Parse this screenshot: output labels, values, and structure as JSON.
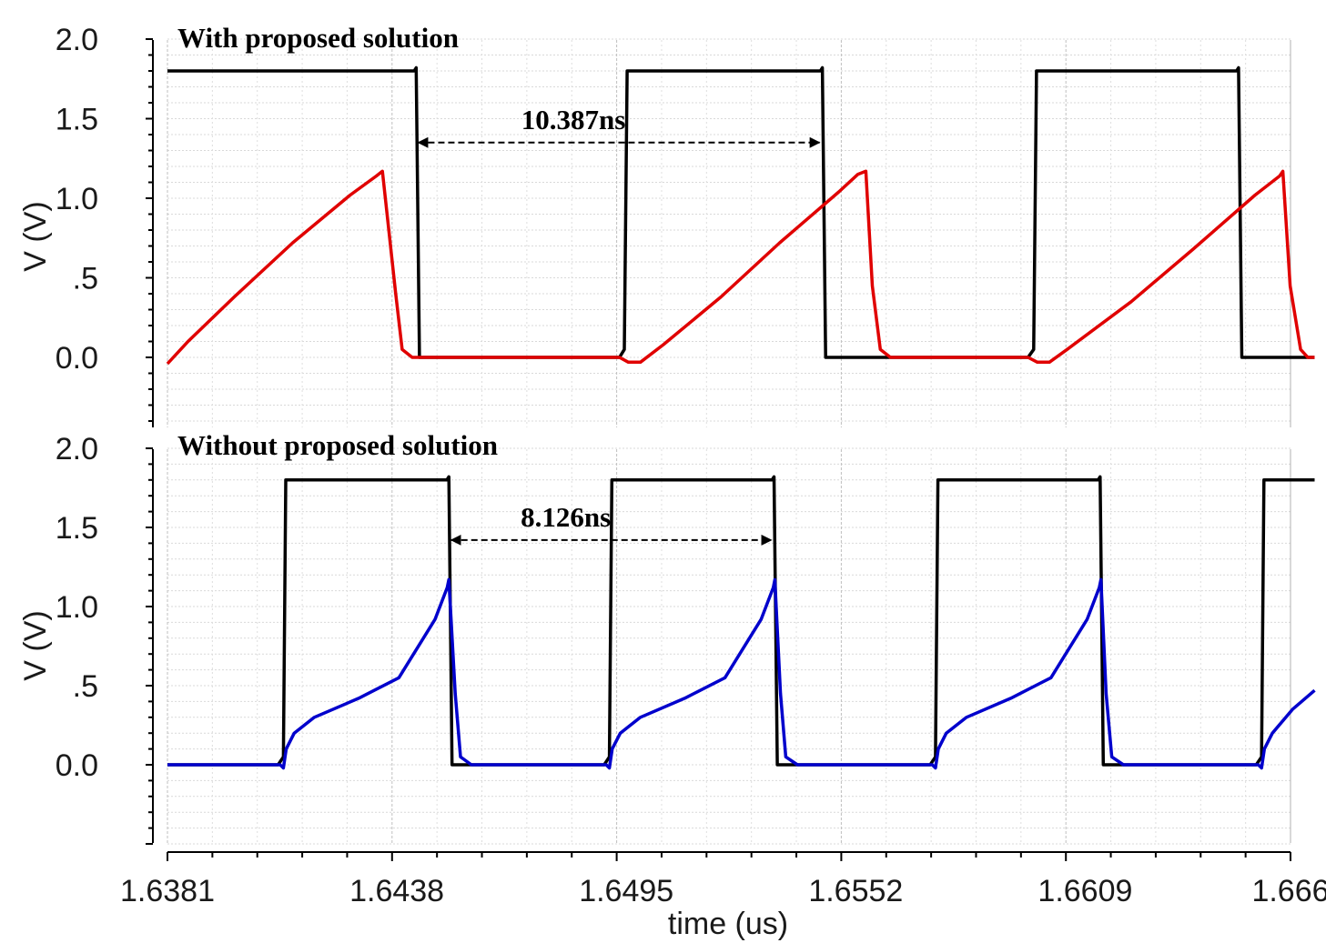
{
  "chart_data": [
    {
      "type": "line",
      "title": "With proposed solution",
      "ylabel": "V (V)",
      "xlabel": "",
      "xlim": [
        1.6381,
        1.666
      ],
      "ylim": [
        -0.4,
        2.0
      ],
      "y_ticks": [
        0.0,
        0.5,
        1.0,
        1.5,
        2.0
      ],
      "y_tick_labels": [
        "0.0",
        ".5",
        "1.0",
        "1.5",
        "2.0"
      ],
      "grid": true,
      "legend": "none",
      "annotation": {
        "text": "10.387ns",
        "x_start": 1.64426,
        "x_end": 1.65437,
        "y": 1.35
      },
      "series": [
        {
          "color": "#000000",
          "points": [
            [
              1.6381,
              1.8
            ],
            [
              1.64423,
              1.8
            ],
            [
              1.64428,
              1.82
            ],
            [
              1.64436,
              0.0
            ],
            [
              1.64475,
              0.0
            ],
            [
              1.64933,
              0.0
            ],
            [
              1.64945,
              0.05
            ],
            [
              1.64952,
              1.8
            ],
            [
              1.65432,
              1.8
            ],
            [
              1.65437,
              1.82
            ],
            [
              1.65445,
              0.0
            ],
            [
              1.65485,
              0.0
            ],
            [
              1.65948,
              0.0
            ],
            [
              1.65962,
              0.05
            ],
            [
              1.65969,
              1.8
            ],
            [
              1.66466,
              1.8
            ],
            [
              1.66471,
              1.82
            ],
            [
              1.66479,
              0.0
            ],
            [
              1.6666,
              0.0
            ]
          ]
        },
        {
          "color": "#e00000",
          "points": [
            [
              1.6381,
              -0.04
            ],
            [
              1.63861,
              0.1
            ],
            [
              1.63976,
              0.38
            ],
            [
              1.64121,
              0.72
            ],
            [
              1.64264,
              1.02
            ],
            [
              1.64329,
              1.14
            ],
            [
              1.64344,
              1.17
            ],
            [
              1.64377,
              0.4
            ],
            [
              1.64393,
              0.05
            ],
            [
              1.64418,
              0.0
            ],
            [
              1.64933,
              0.0
            ],
            [
              1.64955,
              -0.03
            ],
            [
              1.64985,
              -0.03
            ],
            [
              1.65042,
              0.08
            ],
            [
              1.65185,
              0.38
            ],
            [
              1.65331,
              0.72
            ],
            [
              1.65478,
              1.04
            ],
            [
              1.65525,
              1.15
            ],
            [
              1.65545,
              1.17
            ],
            [
              1.65561,
              0.45
            ],
            [
              1.65581,
              0.05
            ],
            [
              1.65606,
              0.0
            ],
            [
              1.65948,
              0.0
            ],
            [
              1.65971,
              -0.03
            ],
            [
              1.66001,
              -0.03
            ],
            [
              1.66045,
              0.05
            ],
            [
              1.66204,
              0.35
            ],
            [
              1.66358,
              0.68
            ],
            [
              1.66512,
              1.02
            ],
            [
              1.66573,
              1.14
            ],
            [
              1.66581,
              1.17
            ],
            [
              1.66599,
              0.45
            ],
            [
              1.66625,
              0.05
            ],
            [
              1.66643,
              0.0
            ],
            [
              1.6666,
              0.0
            ]
          ]
        }
      ]
    },
    {
      "type": "line",
      "title": "Without proposed solution",
      "ylabel": "V (V)",
      "xlabel": "time (us)",
      "xlim": [
        1.6381,
        1.666
      ],
      "ylim": [
        -0.5,
        2.0
      ],
      "x_ticks": [
        1.6381,
        1.6438,
        1.6495,
        1.6552,
        1.6609,
        1.666
      ],
      "x_tick_labels": [
        "1.6381",
        "1.6438",
        "1.6495",
        "1.6552",
        "1.6609",
        "1.666"
      ],
      "y_ticks": [
        0.0,
        0.5,
        1.0,
        1.5,
        2.0
      ],
      "y_tick_labels": [
        "0.0",
        ".5",
        "1.0",
        "1.5",
        "2.0"
      ],
      "grid": true,
      "legend": "none",
      "annotation": {
        "text": "8.126ns",
        "x_start": 1.64508,
        "x_end": 1.65317,
        "y": 1.42
      },
      "series": [
        {
          "color": "#000000",
          "points": [
            [
              1.6381,
              0.0
            ],
            [
              1.64085,
              0.0
            ],
            [
              1.64098,
              0.05
            ],
            [
              1.64104,
              1.8
            ],
            [
              1.64504,
              1.8
            ],
            [
              1.64509,
              1.82
            ],
            [
              1.64517,
              0.0
            ],
            [
              1.64555,
              0.0
            ],
            [
              1.64895,
              0.0
            ],
            [
              1.64908,
              0.05
            ],
            [
              1.64914,
              1.8
            ],
            [
              1.65312,
              1.8
            ],
            [
              1.65317,
              1.82
            ],
            [
              1.65325,
              0.0
            ],
            [
              1.65364,
              0.0
            ],
            [
              1.65705,
              0.0
            ],
            [
              1.65718,
              0.05
            ],
            [
              1.65724,
              1.8
            ],
            [
              1.66122,
              1.8
            ],
            [
              1.66127,
              1.82
            ],
            [
              1.66135,
              0.0
            ],
            [
              1.66173,
              0.0
            ],
            [
              1.66515,
              0.0
            ],
            [
              1.66528,
              0.05
            ],
            [
              1.66534,
              1.8
            ],
            [
              1.6666,
              1.8
            ]
          ]
        },
        {
          "color": "#0000cc",
          "points": [
            [
              1.6381,
              0.0
            ],
            [
              1.6409,
              0.0
            ],
            [
              1.64098,
              -0.02
            ],
            [
              1.64105,
              0.1
            ],
            [
              1.64125,
              0.2
            ],
            [
              1.64175,
              0.3
            ],
            [
              1.64285,
              0.42
            ],
            [
              1.64385,
              0.55
            ],
            [
              1.64475,
              0.92
            ],
            [
              1.64505,
              1.12
            ],
            [
              1.64509,
              1.17
            ],
            [
              1.64525,
              0.45
            ],
            [
              1.64538,
              0.05
            ],
            [
              1.64565,
              0.0
            ],
            [
              1.649,
              0.0
            ],
            [
              1.64908,
              -0.02
            ],
            [
              1.64915,
              0.1
            ],
            [
              1.64935,
              0.2
            ],
            [
              1.64985,
              0.3
            ],
            [
              1.65095,
              0.42
            ],
            [
              1.65195,
              0.55
            ],
            [
              1.65285,
              0.92
            ],
            [
              1.65315,
              1.12
            ],
            [
              1.65319,
              1.17
            ],
            [
              1.65333,
              0.45
            ],
            [
              1.65346,
              0.05
            ],
            [
              1.65375,
              0.0
            ],
            [
              1.6571,
              0.0
            ],
            [
              1.65718,
              -0.02
            ],
            [
              1.65725,
              0.1
            ],
            [
              1.65745,
              0.2
            ],
            [
              1.65795,
              0.3
            ],
            [
              1.65905,
              0.42
            ],
            [
              1.66005,
              0.55
            ],
            [
              1.66095,
              0.92
            ],
            [
              1.66125,
              1.12
            ],
            [
              1.66129,
              1.17
            ],
            [
              1.66142,
              0.45
            ],
            [
              1.66156,
              0.05
            ],
            [
              1.66185,
              0.0
            ],
            [
              1.6652,
              0.0
            ],
            [
              1.66528,
              -0.02
            ],
            [
              1.66535,
              0.1
            ],
            [
              1.66555,
              0.2
            ],
            [
              1.66605,
              0.35
            ],
            [
              1.6666,
              0.47
            ]
          ]
        }
      ]
    }
  ]
}
